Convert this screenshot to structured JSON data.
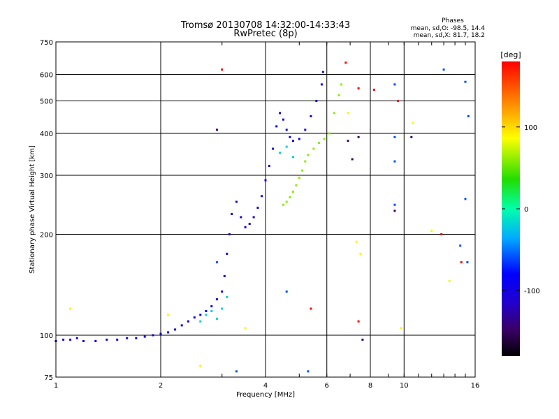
{
  "chart_data": {
    "type": "scatter",
    "title": "Tromsø 20130708 14:32:00-14:33:43",
    "subtitle": "RwPretec (8p)",
    "xlabel": "Frequency [MHz]",
    "ylabel": "Stationary phase Virtual Height [km]",
    "x_scale": "log",
    "y_scale": "log",
    "xlim": [
      1,
      16
    ],
    "ylim": [
      75,
      750
    ],
    "x_ticks": [
      1,
      2,
      4,
      6,
      8,
      10,
      16
    ],
    "x_tick_labels": [
      "1",
      "2",
      "4",
      "6",
      "8",
      "10",
      "16"
    ],
    "y_ticks": [
      75,
      100,
      200,
      300,
      400,
      500,
      600,
      750
    ],
    "y_tick_labels": [
      "75",
      "100",
      "200",
      "300",
      "400",
      "500",
      "600",
      "750"
    ],
    "grid": true,
    "stats": {
      "heading": "Phases",
      "line_o": "mean, sd,O: -98.5, 14.4",
      "line_x": "mean, sd,X: 81.7, 18.2"
    },
    "colorbar": {
      "label": "[deg]",
      "range": [
        -180,
        180
      ],
      "ticks": [
        100,
        0,
        -100
      ],
      "tick_labels": [
        "100",
        "0",
        "-100"
      ]
    },
    "series": [
      {
        "phase_deg": -100,
        "points": [
          [
            1.0,
            96
          ],
          [
            1.05,
            97
          ],
          [
            1.1,
            97
          ],
          [
            1.15,
            98
          ],
          [
            1.2,
            96
          ],
          [
            1.3,
            96
          ],
          [
            1.4,
            97
          ],
          [
            1.5,
            97
          ],
          [
            1.6,
            98
          ],
          [
            1.7,
            98
          ],
          [
            1.8,
            99
          ],
          [
            1.9,
            100
          ],
          [
            2.0,
            101
          ],
          [
            2.1,
            102
          ],
          [
            2.2,
            104
          ],
          [
            2.3,
            107
          ],
          [
            2.4,
            110
          ],
          [
            2.5,
            113
          ],
          [
            2.6,
            115
          ],
          [
            2.7,
            118
          ],
          [
            2.8,
            122
          ],
          [
            2.9,
            128
          ],
          [
            3.0,
            135
          ],
          [
            3.05,
            150
          ],
          [
            3.1,
            175
          ],
          [
            3.15,
            200
          ],
          [
            3.2,
            230
          ],
          [
            3.3,
            250
          ],
          [
            3.4,
            225
          ],
          [
            3.5,
            210
          ],
          [
            3.6,
            215
          ],
          [
            3.7,
            225
          ],
          [
            3.8,
            240
          ],
          [
            3.9,
            260
          ],
          [
            4.0,
            290
          ],
          [
            4.1,
            320
          ],
          [
            4.2,
            360
          ],
          [
            4.3,
            420
          ],
          [
            4.4,
            460
          ],
          [
            4.5,
            440
          ],
          [
            4.6,
            410
          ],
          [
            4.7,
            390
          ],
          [
            4.8,
            380
          ],
          [
            5.0,
            385
          ],
          [
            5.2,
            410
          ],
          [
            5.4,
            450
          ],
          [
            5.6,
            500
          ],
          [
            5.8,
            560
          ],
          [
            5.85,
            610
          ]
        ]
      },
      {
        "phase_deg": 60,
        "points": [
          [
            4.5,
            245
          ],
          [
            4.6,
            250
          ],
          [
            4.7,
            258
          ],
          [
            4.8,
            268
          ],
          [
            4.9,
            280
          ],
          [
            5.0,
            295
          ],
          [
            5.1,
            310
          ],
          [
            5.2,
            330
          ],
          [
            5.3,
            345
          ],
          [
            5.5,
            360
          ],
          [
            5.7,
            375
          ],
          [
            5.9,
            385
          ],
          [
            6.1,
            400
          ],
          [
            6.3,
            460
          ],
          [
            6.5,
            520
          ],
          [
            6.6,
            560
          ]
        ]
      },
      {
        "phase_deg": -20,
        "points": [
          [
            2.6,
            110
          ],
          [
            2.7,
            115
          ],
          [
            2.8,
            118
          ],
          [
            2.9,
            112
          ],
          [
            3.0,
            120
          ],
          [
            3.1,
            130
          ],
          [
            4.4,
            350
          ],
          [
            4.6,
            365
          ],
          [
            4.8,
            340
          ]
        ]
      },
      {
        "phase_deg": 180,
        "points": [
          [
            3.0,
            620
          ],
          [
            6.8,
            650
          ],
          [
            7.4,
            545
          ],
          [
            8.2,
            540
          ],
          [
            9.6,
            500
          ],
          [
            12.8,
            200
          ],
          [
            14.6,
            165
          ],
          [
            7.4,
            110
          ],
          [
            5.4,
            120
          ]
        ]
      },
      {
        "phase_deg": 90,
        "points": [
          [
            2.1,
            115
          ],
          [
            1.1,
            120
          ],
          [
            3.5,
            105
          ],
          [
            7.5,
            175
          ],
          [
            7.3,
            190
          ],
          [
            9.8,
            105
          ],
          [
            12.0,
            205
          ],
          [
            13.5,
            145
          ],
          [
            2.6,
            81
          ],
          [
            10.6,
            430
          ],
          [
            6.9,
            460
          ]
        ]
      },
      {
        "phase_deg": -60,
        "points": [
          [
            9.4,
            560
          ],
          [
            9.4,
            390
          ],
          [
            9.4,
            330
          ],
          [
            9.4,
            245
          ],
          [
            15.3,
            450
          ],
          [
            14.5,
            185
          ],
          [
            15.0,
            255
          ],
          [
            15.2,
            165
          ],
          [
            13.0,
            620
          ],
          [
            15.0,
            570
          ],
          [
            3.3,
            78
          ],
          [
            5.3,
            78
          ],
          [
            4.6,
            135
          ],
          [
            2.9,
            165
          ]
        ]
      },
      {
        "phase_deg": -150,
        "points": [
          [
            2.9,
            410
          ],
          [
            7.1,
            335
          ],
          [
            7.4,
            390
          ],
          [
            9.4,
            235
          ],
          [
            10.5,
            390
          ],
          [
            6.9,
            380
          ],
          [
            7.6,
            97
          ]
        ]
      }
    ]
  }
}
